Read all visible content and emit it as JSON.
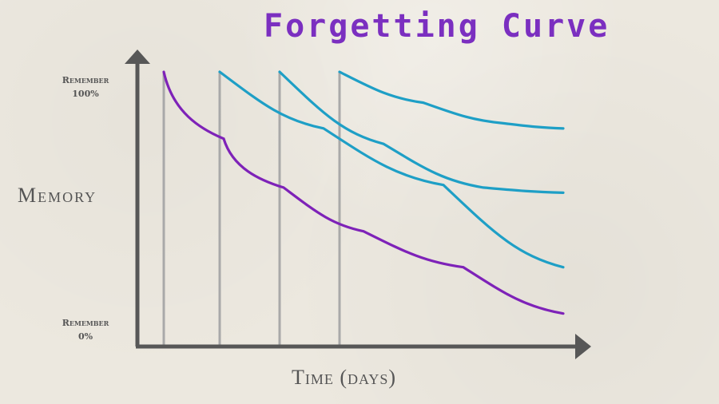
{
  "title": "Forgetting Curve",
  "y_axis": {
    "label": "Memory",
    "top_tick": [
      "Remember",
      "100%"
    ],
    "bottom_tick": [
      "Remember",
      "0%"
    ]
  },
  "x_axis": {
    "label": "Time (days)"
  },
  "colors": {
    "forgetting": "#7e22b8",
    "review": "#1e9fc6",
    "axis": "#575757",
    "marker": "#a9a9a9",
    "title": "#7b2fc0"
  },
  "chart_data": {
    "type": "line",
    "title": "Forgetting Curve",
    "xlabel": "Time (days)",
    "ylabel": "Memory",
    "ylim": [
      0,
      100
    ],
    "x_ticks": [],
    "y_ticks": [
      "Remember 100%",
      "Remember 0%"
    ],
    "series": [
      {
        "style": "purple",
        "x": [
          0,
          0.15,
          0.3,
          0.5,
          0.75,
          1.0
        ],
        "values": [
          100,
          74,
          55,
          38,
          24,
          6
        ]
      },
      {
        "style": "teal",
        "x": [
          0.14,
          0.4,
          0.7,
          1.0
        ],
        "values": [
          100,
          78,
          56,
          24
        ]
      },
      {
        "style": "teal",
        "x": [
          0.29,
          0.55,
          0.8,
          1.0
        ],
        "values": [
          100,
          72,
          55,
          53
        ]
      },
      {
        "style": "teal",
        "x": [
          0.44,
          0.65,
          0.85,
          1.0
        ],
        "values": [
          100,
          88,
          80,
          78
        ]
      }
    ],
    "review_points_x": [
      0.14,
      0.29,
      0.44
    ]
  }
}
